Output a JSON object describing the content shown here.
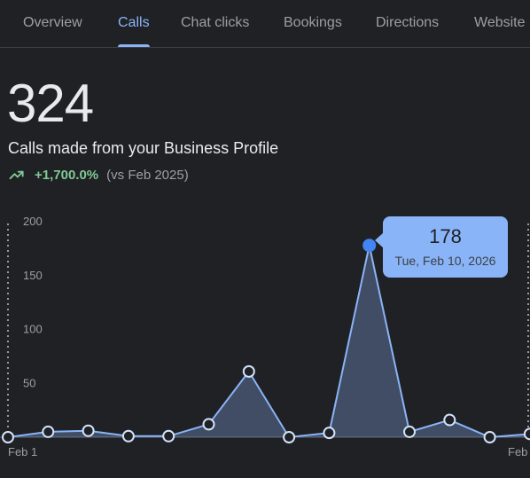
{
  "tabs": [
    {
      "label": "Overview",
      "active": false
    },
    {
      "label": "Calls",
      "active": true
    },
    {
      "label": "Chat clicks",
      "active": false
    },
    {
      "label": "Bookings",
      "active": false
    },
    {
      "label": "Directions",
      "active": false
    },
    {
      "label": "Website",
      "active": false
    }
  ],
  "summary": {
    "total": "324",
    "subtitle": "Calls made from your Business Profile",
    "change": "+1,700.0%",
    "compare": "(vs Feb 2025)"
  },
  "tooltip": {
    "value": "178",
    "date": "Tue, Feb 10, 2026"
  },
  "colors": {
    "background": "#202124",
    "accent": "#8ab4f8",
    "positive": "#81c995",
    "muted": "#9aa0a6"
  },
  "chart_data": {
    "type": "area",
    "title": "",
    "xlabel": "",
    "ylabel": "",
    "ylim": [
      0,
      200
    ],
    "yticks": [
      50,
      100,
      150,
      200
    ],
    "x_tick_labels": [
      "Feb 1",
      "Feb"
    ],
    "x": [
      "Feb 1",
      "Feb 2",
      "Feb 3",
      "Feb 4",
      "Feb 5",
      "Feb 6",
      "Feb 7",
      "Feb 8",
      "Feb 9",
      "Feb 10",
      "Feb 11",
      "Feb 12",
      "Feb 13",
      "Feb 14"
    ],
    "values": [
      0,
      5,
      6,
      1,
      1,
      12,
      61,
      0,
      4,
      178,
      5,
      16,
      0,
      3
    ],
    "highlight_index": 9
  }
}
